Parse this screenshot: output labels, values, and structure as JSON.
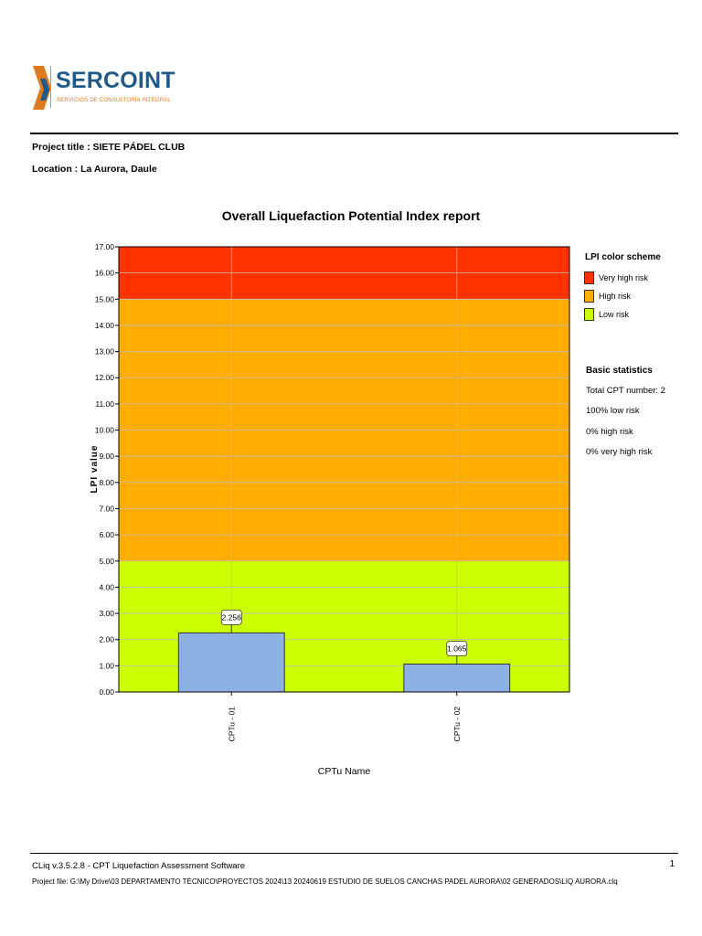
{
  "logo": {
    "name": "SERCOINT",
    "tagline": "SERVICIOS DE CONSULTORÍA INTEGRAL"
  },
  "project": {
    "title_line": "Project title : SIETE PÁDEL CLUB",
    "location_line": "Location : La Aurora, Daule"
  },
  "chart_data": {
    "type": "bar",
    "title": "Overall Liquefaction Potential Index report",
    "xlabel": "CPTu Name",
    "ylabel": "LPI value",
    "ylim": [
      0,
      17
    ],
    "yticks": [
      0,
      1,
      2,
      3,
      4,
      5,
      6,
      7,
      8,
      9,
      10,
      11,
      12,
      13,
      14,
      15,
      16,
      17
    ],
    "categories": [
      "CPTu - 01",
      "CPTu - 02"
    ],
    "values": [
      2.256,
      1.065
    ],
    "data_labels": [
      "2.256",
      "1.065"
    ],
    "bar_color": "#8db0e3",
    "grid": true,
    "bands": [
      {
        "from": 0,
        "to": 5,
        "color": "#ccff00",
        "label": "Low risk"
      },
      {
        "from": 5,
        "to": 15,
        "color": "#ffad00",
        "label": "High risk"
      },
      {
        "from": 15,
        "to": 17,
        "color": "#ff3300",
        "label": "Very high risk"
      }
    ]
  },
  "legend": {
    "title": "LPI color scheme",
    "items": [
      {
        "label": "Very high risk",
        "color": "#ff3300"
      },
      {
        "label": "High risk",
        "color": "#ffad00"
      },
      {
        "label": "Low risk",
        "color": "#ccff00"
      }
    ]
  },
  "stats": {
    "title": "Basic statistics",
    "lines": [
      "Total CPT number: 2",
      "100% low risk",
      "0% high risk",
      "0% very high risk"
    ]
  },
  "footer": {
    "software": "CLiq v.3.5.2.8 - CPT Liquefaction Assessment Software",
    "project_file": "Project file: G:\\My Drive\\03 DEPARTAMENTO TÉCNICO\\PROYECTOS 2024\\13 20240619 ESTUDIO DE SUELOS CANCHAS PADEL AURORA\\02 GENERADOS\\LIQ AURORA.clq",
    "page": "1"
  }
}
